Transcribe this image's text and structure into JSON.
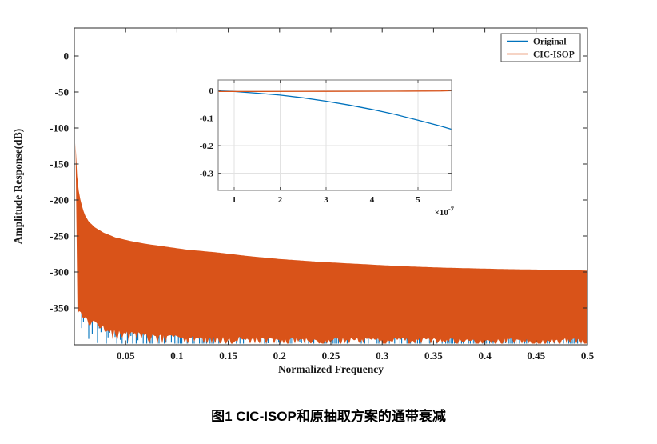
{
  "figure": {
    "caption": "图1 CIC-ISOP和原抽取方案的通带衰减"
  },
  "colors": {
    "blue": "#0072BD",
    "orange": "#D95319",
    "axis": "#2b2b2b",
    "inset_border": "#8c8c8c",
    "grid": "#e2e2e2",
    "background": "#ffffff"
  },
  "legend": {
    "position": "top-right",
    "items": [
      {
        "label": "Original",
        "color": "#0072BD"
      },
      {
        "label": "CIC-ISOP",
        "color": "#D95319"
      }
    ]
  },
  "main_axes": {
    "xlabel": "Normalized Frequency",
    "ylabel": "Amplitude Response(dB)",
    "xtick_labels": [
      "0.05",
      "0.1",
      "0.15",
      "0.2",
      "0.25",
      "0.3",
      "0.35",
      "0.4",
      "0.45",
      "0.5"
    ],
    "ytick_labels": [
      "0",
      "-50",
      "-100",
      "-150",
      "-200",
      "-250",
      "-300",
      "-350"
    ]
  },
  "inset_axes": {
    "xtick_labels": [
      "1",
      "2",
      "3",
      "4",
      "5"
    ],
    "ytick_labels": [
      "0",
      "-0.1",
      "-0.2",
      "-0.3"
    ],
    "scale_base": "×10",
    "scale_exp": "-7"
  },
  "chart_data": [
    {
      "type": "area",
      "title": "",
      "xlabel": "Normalized Frequency",
      "ylabel": "Amplitude Response(dB)",
      "xlim": [
        0,
        0.5
      ],
      "ylim": [
        -401,
        39
      ],
      "xticks": [
        0.05,
        0.1,
        0.15,
        0.2,
        0.25,
        0.3,
        0.35,
        0.4,
        0.45,
        0.5
      ],
      "yticks": [
        0,
        -50,
        -100,
        -150,
        -200,
        -250,
        -300,
        -350
      ],
      "grid": false,
      "legend_position": "top-right",
      "series": [
        {
          "name": "Original",
          "color": "#0072BD",
          "description": "dense stopband oscillation; visible only as noise spikes protruding below the CIC-ISOP fill along the bottom of the plot",
          "x_range": [
            0.005,
            0.5
          ],
          "noise_band_dB": [
            -352,
            -400
          ]
        },
        {
          "name": "CIC-ISOP",
          "color": "#D95319",
          "description": "dense oscillation rendered as a solid filled band; peak spike near f=0 reaching about -121 dB",
          "top_envelope": [
            [
              0.0012,
              -121
            ],
            [
              0.002,
              -150
            ],
            [
              0.003,
              -172
            ],
            [
              0.0045,
              -189
            ],
            [
              0.006,
              -200
            ],
            [
              0.008,
              -211
            ],
            [
              0.01,
              -220
            ],
            [
              0.014,
              -230
            ],
            [
              0.02,
              -238
            ],
            [
              0.028,
              -245
            ],
            [
              0.04,
              -252
            ],
            [
              0.055,
              -257
            ],
            [
              0.07,
              -261
            ],
            [
              0.09,
              -265
            ],
            [
              0.11,
              -269
            ],
            [
              0.14,
              -273
            ],
            [
              0.17,
              -278
            ],
            [
              0.2,
              -282
            ],
            [
              0.24,
              -286
            ],
            [
              0.28,
              -289
            ],
            [
              0.32,
              -292
            ],
            [
              0.36,
              -294
            ],
            [
              0.42,
              -296
            ],
            [
              0.47,
              -297
            ],
            [
              0.5,
              -298
            ]
          ],
          "bottom_envelope": [
            [
              0.0012,
              -341
            ],
            [
              0.004,
              -350
            ],
            [
              0.008,
              -357
            ],
            [
              0.013,
              -364
            ],
            [
              0.02,
              -370
            ],
            [
              0.03,
              -377
            ],
            [
              0.045,
              -382
            ],
            [
              0.065,
              -386
            ],
            [
              0.09,
              -389
            ],
            [
              0.13,
              -391
            ],
            [
              0.18,
              -392
            ],
            [
              0.25,
              -393
            ],
            [
              0.35,
              -394
            ],
            [
              0.5,
              -394
            ]
          ]
        }
      ]
    },
    {
      "type": "line",
      "title": "",
      "xlim_e7": [
        0.65,
        5.73
      ],
      "ylim": [
        -0.362,
        0.038
      ],
      "xticks_e7": [
        1,
        2,
        3,
        4,
        5
      ],
      "yticks": [
        0,
        -0.1,
        -0.2,
        -0.3
      ],
      "x_scale_label": "×10^-7",
      "grid": true,
      "series": [
        {
          "name": "Original",
          "color": "#0072BD",
          "x_e7": [
            0.65,
            1,
            1.5,
            2,
            2.5,
            3,
            3.5,
            4,
            4.5,
            5,
            5.5,
            5.73
          ],
          "y": [
            -0.002,
            -0.004,
            -0.01,
            -0.017,
            -0.027,
            -0.039,
            -0.053,
            -0.069,
            -0.087,
            -0.108,
            -0.13,
            -0.141
          ]
        },
        {
          "name": "CIC-ISOP",
          "color": "#D95319",
          "x_e7": [
            0.65,
            1.5,
            3,
            4.5,
            5.5,
            5.73
          ],
          "y": [
            -0.004,
            -0.004,
            -0.0035,
            -0.003,
            -0.002,
            -0.001
          ]
        }
      ]
    }
  ]
}
